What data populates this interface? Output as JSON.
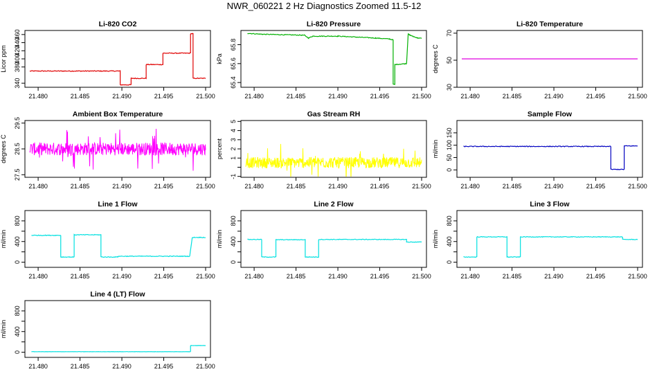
{
  "title": "NWR_060221  2 Hz Diagnostics Zoomed 11.5-12",
  "chart_data": [
    {
      "type": "line",
      "title": "Li-820 CO2",
      "ylabel": "Licor ppm",
      "xlim": [
        21.479,
        21.5
      ],
      "ylim": [
        330,
        470
      ],
      "xticks": [
        21.48,
        21.485,
        21.49,
        21.495,
        21.5
      ],
      "yticks": [
        340,
        380,
        400,
        420,
        440,
        460
      ],
      "color": "#e00000",
      "noise": 1,
      "x": [
        21.479,
        21.4898,
        21.4898,
        21.4911,
        21.4911,
        21.4929,
        21.4929,
        21.4949,
        21.4949,
        21.4982,
        21.4982,
        21.4985,
        21.4985,
        21.5
      ],
      "y": [
        370,
        370,
        336,
        336,
        352,
        352,
        386,
        386,
        414,
        414,
        462,
        462,
        352,
        352
      ]
    },
    {
      "type": "line",
      "title": "Li-820 Pressure",
      "ylabel": "kPa",
      "xlim": [
        21.479,
        21.5
      ],
      "ylim": [
        65.35,
        65.95
      ],
      "xticks": [
        21.48,
        21.485,
        21.49,
        21.495,
        21.5
      ],
      "yticks": [
        65.4,
        65.6,
        65.8
      ],
      "color": "#00b000",
      "noise": 0.004,
      "x": [
        21.4792,
        21.481,
        21.486,
        21.4865,
        21.487,
        21.49,
        21.4945,
        21.4962,
        21.4966,
        21.4966,
        21.4968,
        21.4968,
        21.4982,
        21.4984,
        21.4986,
        21.4995,
        21.5
      ],
      "y": [
        65.92,
        65.91,
        65.9,
        65.87,
        65.89,
        65.89,
        65.87,
        65.86,
        65.85,
        65.38,
        65.38,
        65.59,
        65.6,
        65.92,
        65.9,
        65.87,
        65.87
      ]
    },
    {
      "type": "line",
      "title": "Li-820 Temperature",
      "ylabel": "degrees C",
      "xlim": [
        21.479,
        21.5
      ],
      "ylim": [
        30,
        72
      ],
      "xticks": [
        21.48,
        21.485,
        21.49,
        21.495,
        21.5
      ],
      "yticks": [
        30,
        50,
        70
      ],
      "color": "#e000e0",
      "noise": 0,
      "x": [
        21.479,
        21.5
      ],
      "y": [
        51,
        51
      ]
    },
    {
      "type": "line",
      "title": "Ambient Box Temperature",
      "ylabel": "degrees C",
      "xlim": [
        21.479,
        21.5
      ],
      "ylim": [
        27.4,
        29.6
      ],
      "xticks": [
        21.48,
        21.485,
        21.49,
        21.495,
        21.5
      ],
      "yticks": [
        27.5,
        28.5,
        29.5
      ],
      "yticklabels": [
        "27.5",
        "28.5",
        "29.5"
      ],
      "color": "#ff00ff",
      "noise": 0.25,
      "noise_style": "dense",
      "x": [
        21.479,
        21.5
      ],
      "y": [
        28.5,
        28.5
      ]
    },
    {
      "type": "line",
      "title": "Gas Stream RH",
      "ylabel": "percent",
      "xlim": [
        21.479,
        21.5
      ],
      "ylim": [
        -1.1,
        5.1
      ],
      "xticks": [
        21.48,
        21.485,
        21.49,
        21.495,
        21.5
      ],
      "yticks": [
        -1,
        0,
        1,
        2,
        3,
        4,
        5
      ],
      "yticklabels": [
        "-1",
        "",
        "1",
        "2",
        "3",
        "4",
        "5"
      ],
      "color": "#ffff00",
      "noise": 0.6,
      "noise_style": "dense",
      "x": [
        21.479,
        21.5
      ],
      "y": [
        0.5,
        0.5
      ]
    },
    {
      "type": "line",
      "title": "Sample Flow",
      "ylabel": "ml/min",
      "xlim": [
        21.479,
        21.5
      ],
      "ylim": [
        -30,
        200
      ],
      "xticks": [
        21.48,
        21.485,
        21.49,
        21.495,
        21.5
      ],
      "yticks": [
        0,
        50,
        100,
        150
      ],
      "color": "#0000c0",
      "noise": 1.5,
      "x": [
        21.4792,
        21.4968,
        21.4968,
        21.4984,
        21.4984,
        21.5
      ],
      "y": [
        95,
        95,
        2,
        2,
        97,
        97
      ]
    },
    {
      "type": "line",
      "title": "Line 1 Flow",
      "ylabel": "ml/min",
      "xlim": [
        21.479,
        21.5
      ],
      "ylim": [
        -100,
        1000
      ],
      "xticks": [
        21.48,
        21.485,
        21.49,
        21.495,
        21.5
      ],
      "yticks": [
        0,
        200,
        400,
        600,
        800
      ],
      "yticklabels": [
        "0",
        "",
        "400",
        "",
        "800"
      ],
      "color": "#00e0e0",
      "noise": 7,
      "x": [
        21.4792,
        21.4827,
        21.4827,
        21.4843,
        21.4843,
        21.4875,
        21.4875,
        21.4895,
        21.4895,
        21.4981,
        21.4981,
        21.4984,
        21.4984,
        21.5
      ],
      "y": [
        520,
        520,
        100,
        100,
        530,
        530,
        100,
        100,
        115,
        115,
        115,
        470,
        480,
        480
      ]
    },
    {
      "type": "line",
      "title": "Line 2 Flow",
      "ylabel": "ml/min",
      "xlim": [
        21.479,
        21.5
      ],
      "ylim": [
        -100,
        1000
      ],
      "xticks": [
        21.48,
        21.485,
        21.49,
        21.495,
        21.5
      ],
      "yticks": [
        0,
        200,
        400,
        600,
        800
      ],
      "yticklabels": [
        "0",
        "",
        "400",
        "",
        "800"
      ],
      "color": "#00e0e0",
      "noise": 6,
      "x": [
        21.4792,
        21.4809,
        21.4809,
        21.4826,
        21.4826,
        21.4861,
        21.4861,
        21.4877,
        21.4877,
        21.4982,
        21.4982,
        21.5
      ],
      "y": [
        440,
        440,
        100,
        100,
        435,
        435,
        100,
        100,
        440,
        440,
        390,
        390
      ]
    },
    {
      "type": "line",
      "title": "Line 3 Flow",
      "ylabel": "ml/min",
      "xlim": [
        21.479,
        21.5
      ],
      "ylim": [
        -100,
        1000
      ],
      "xticks": [
        21.48,
        21.485,
        21.49,
        21.495,
        21.5
      ],
      "yticks": [
        0,
        200,
        400,
        600,
        800
      ],
      "yticklabels": [
        "0",
        "",
        "400",
        "",
        "800"
      ],
      "color": "#00e0e0",
      "noise": 6,
      "x": [
        21.4792,
        21.4808,
        21.4808,
        21.4844,
        21.4844,
        21.486,
        21.486,
        21.4982,
        21.4982,
        21.5
      ],
      "y": [
        100,
        100,
        490,
        490,
        100,
        100,
        490,
        490,
        440,
        440
      ]
    },
    {
      "type": "line",
      "title": "Line 4 (LT) Flow",
      "ylabel": "ml/min",
      "xlim": [
        21.479,
        21.5
      ],
      "ylim": [
        -100,
        1000
      ],
      "xticks": [
        21.48,
        21.485,
        21.49,
        21.495,
        21.5
      ],
      "yticks": [
        0,
        200,
        400,
        600,
        800
      ],
      "yticklabels": [
        "0",
        "",
        "400",
        "",
        "800"
      ],
      "color": "#00e0e0",
      "noise": 2,
      "x": [
        21.4792,
        21.4982,
        21.4982,
        21.5
      ],
      "y": [
        10,
        10,
        130,
        130
      ]
    }
  ]
}
